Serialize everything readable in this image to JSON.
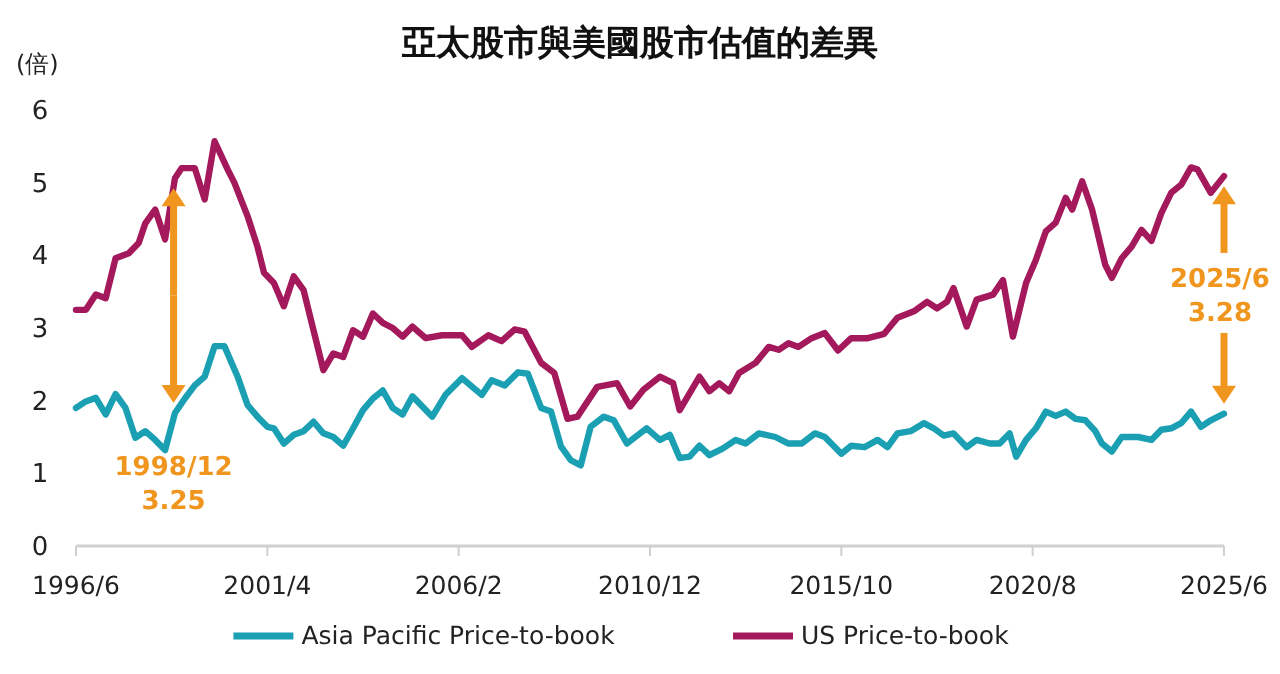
{
  "chart_data": {
    "type": "line",
    "title": "亞太股市與美國股市估值的差異",
    "ylabel": "(倍)",
    "x": [
      "1996-06",
      "1996-09",
      "1996-12",
      "1997-03",
      "1997-06",
      "1997-10",
      "1998-01",
      "1998-03",
      "1998-06",
      "1998-09",
      "1998-12",
      "1999-02",
      "1999-06",
      "1999-09",
      "1999-12",
      "2000-04",
      "2000-06",
      "2000-10",
      "2001-01",
      "2001-03",
      "2001-06",
      "2001-09",
      "2001-12",
      "2002-03",
      "2002-06",
      "2002-09",
      "2002-12",
      "2003-03",
      "2003-06",
      "2003-09",
      "2003-12",
      "2004-03",
      "2004-06",
      "2004-09",
      "2004-12",
      "2005-04",
      "2005-09",
      "2006-03",
      "2006-06",
      "2006-11",
      "2007-03",
      "2007-07",
      "2007-10",
      "2008-03",
      "2008-07",
      "2008-11",
      "2009-02",
      "2009-08",
      "2010-02",
      "2010-06",
      "2010-10",
      "2011-03",
      "2011-07",
      "2011-09",
      "2011-12",
      "2012-03",
      "2012-06",
      "2012-09",
      "2012-12",
      "2013-03",
      "2013-08",
      "2013-12",
      "2014-03",
      "2014-06",
      "2014-09",
      "2015-01",
      "2015-05",
      "2015-09",
      "2016-01",
      "2016-06",
      "2016-11",
      "2017-03",
      "2017-08",
      "2017-12",
      "2018-03",
      "2018-06",
      "2018-08",
      "2018-12",
      "2019-03",
      "2019-08",
      "2019-11",
      "2020-02",
      "2020-06",
      "2020-09",
      "2020-12",
      "2021-03",
      "2021-06",
      "2021-08",
      "2021-11",
      "2022-02",
      "2022-06",
      "2022-08",
      "2022-11",
      "2023-02",
      "2023-05",
      "2023-08",
      "2023-11",
      "2024-02",
      "2024-05",
      "2024-08",
      "2024-10",
      "2025-02",
      "2025-06"
    ],
    "series": [
      {
        "name": "Asia Pacific Price-to-book",
        "color": "#1b9fb3",
        "x": [
          "1996-06",
          "1996-09",
          "1996-12",
          "1997-03",
          "1997-06",
          "1997-09",
          "1997-12",
          "1998-03",
          "1998-06",
          "1998-09",
          "1998-12",
          "1999-03",
          "1999-06",
          "1999-09",
          "1999-12",
          "2000-03",
          "2000-07",
          "2000-10",
          "2001-01",
          "2001-04",
          "2001-06",
          "2001-09",
          "2001-12",
          "2002-03",
          "2002-06",
          "2002-09",
          "2002-12",
          "2003-03",
          "2003-06",
          "2003-09",
          "2003-12",
          "2004-03",
          "2004-06",
          "2004-09",
          "2004-12",
          "2005-03",
          "2005-06",
          "2005-10",
          "2006-03",
          "2006-09",
          "2006-12",
          "2007-04",
          "2007-08",
          "2007-11",
          "2008-03",
          "2008-06",
          "2008-09",
          "2008-12",
          "2009-03",
          "2009-06",
          "2009-10",
          "2010-01",
          "2010-05",
          "2010-11",
          "2011-03",
          "2011-06",
          "2011-09",
          "2011-12",
          "2012-03",
          "2012-06",
          "2012-10",
          "2013-02",
          "2013-05",
          "2013-09",
          "2014-02",
          "2014-06",
          "2014-10",
          "2015-02",
          "2015-05",
          "2015-10",
          "2016-01",
          "2016-05",
          "2016-09",
          "2016-12",
          "2017-03",
          "2017-07",
          "2017-11",
          "2018-02",
          "2018-05",
          "2018-08",
          "2018-12",
          "2019-03",
          "2019-07",
          "2019-10",
          "2020-01",
          "2020-03",
          "2020-06",
          "2020-09",
          "2020-12",
          "2021-03",
          "2021-06",
          "2021-09",
          "2021-12",
          "2022-03",
          "2022-05",
          "2022-08",
          "2022-11",
          "2023-04",
          "2023-08",
          "2023-11",
          "2024-02",
          "2024-05",
          "2024-08",
          "2024-11",
          "2025-02",
          "2025-06"
        ],
        "values": [
          1.9,
          1.99,
          2.04,
          1.81,
          2.09,
          1.9,
          1.49,
          1.58,
          1.46,
          1.32,
          1.83,
          2.03,
          2.21,
          2.33,
          2.75,
          2.75,
          2.33,
          1.94,
          1.78,
          1.64,
          1.62,
          1.41,
          1.53,
          1.58,
          1.71,
          1.55,
          1.5,
          1.38,
          1.62,
          1.87,
          2.03,
          2.14,
          1.9,
          1.81,
          2.06,
          1.92,
          1.78,
          2.08,
          2.31,
          2.08,
          2.28,
          2.21,
          2.39,
          2.37,
          1.9,
          1.85,
          1.37,
          1.18,
          1.11,
          1.64,
          1.78,
          1.73,
          1.41,
          1.62,
          1.46,
          1.53,
          1.21,
          1.23,
          1.38,
          1.25,
          1.34,
          1.46,
          1.41,
          1.55,
          1.5,
          1.41,
          1.41,
          1.55,
          1.5,
          1.27,
          1.38,
          1.36,
          1.46,
          1.36,
          1.55,
          1.58,
          1.69,
          1.62,
          1.52,
          1.55,
          1.36,
          1.46,
          1.41,
          1.41,
          1.55,
          1.23,
          1.46,
          1.62,
          1.85,
          1.79,
          1.85,
          1.75,
          1.73,
          1.58,
          1.41,
          1.3,
          1.5,
          1.5,
          1.46,
          1.6,
          1.62,
          1.69,
          1.85,
          1.64,
          1.73,
          1.82
        ]
      },
      {
        "name": "US Price-to-book",
        "color": "#a3195b",
        "values": [
          3.25,
          3.25,
          3.46,
          3.41,
          3.96,
          4.03,
          4.17,
          4.44,
          4.63,
          4.22,
          5.06,
          5.2,
          5.2,
          4.77,
          5.57,
          5.18,
          5.0,
          4.54,
          4.12,
          3.76,
          3.62,
          3.3,
          3.71,
          3.52,
          2.97,
          2.42,
          2.65,
          2.6,
          2.97,
          2.88,
          3.2,
          3.07,
          3.0,
          2.88,
          3.02,
          2.86,
          2.9,
          2.9,
          2.74,
          2.9,
          2.82,
          2.98,
          2.95,
          2.52,
          2.38,
          1.75,
          1.78,
          2.19,
          2.24,
          1.92,
          2.15,
          2.33,
          2.24,
          1.87,
          2.1,
          2.33,
          2.13,
          2.24,
          2.13,
          2.38,
          2.52,
          2.74,
          2.7,
          2.79,
          2.74,
          2.86,
          2.93,
          2.69,
          2.86,
          2.86,
          2.92,
          3.14,
          3.23,
          3.36,
          3.27,
          3.36,
          3.55,
          3.02,
          3.39,
          3.46,
          3.66,
          2.88,
          3.62,
          3.94,
          4.33,
          4.45,
          4.79,
          4.63,
          5.02,
          4.63,
          3.87,
          3.69,
          3.96,
          4.12,
          4.35,
          4.2,
          4.58,
          4.86,
          4.97,
          5.21,
          5.18,
          4.86,
          5.09
        ]
      }
    ],
    "xlim": [
      "1996-06",
      "2025-06"
    ],
    "xticks": [
      {
        "value": "1996-06",
        "label": "1996/6"
      },
      {
        "value": "2001-04",
        "label": "2001/4"
      },
      {
        "value": "2006-02",
        "label": "2006/2"
      },
      {
        "value": "2010-12",
        "label": "2010/12"
      },
      {
        "value": "2015-10",
        "label": "2015/10"
      },
      {
        "value": "2020-08",
        "label": "2020/8"
      },
      {
        "value": "2025-06",
        "label": "2025/6"
      }
    ],
    "ylim": [
      0,
      6
    ],
    "yticks": [
      0,
      1,
      2,
      3,
      4,
      5,
      6
    ],
    "grid": false,
    "legend": "bottom",
    "marker": "none",
    "line_style": "solid",
    "annotations": [
      "1998/12\n3.25",
      "2025/6\n3.28"
    ]
  }
}
